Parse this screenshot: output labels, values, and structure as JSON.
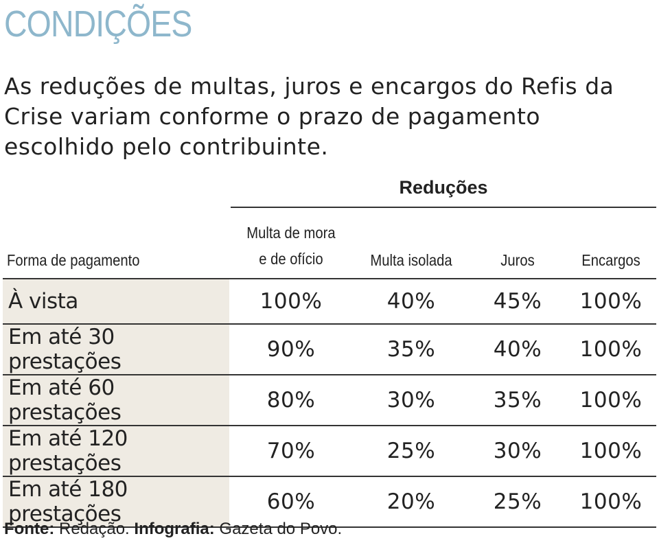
{
  "title": "CONDIÇÕES",
  "subtitle": "As reduções de multas, juros e encargos do Refis da Crise variam conforme o prazo de pagamento escolhido pelo contribuinte.",
  "table": {
    "group_header": "Reduções",
    "columns": {
      "payment": "Forma de pagamento",
      "multa_mora_line1": "Multa de mora",
      "multa_mora_line2": "e de ofício",
      "multa_isolada": "Multa isolada",
      "juros": "Juros",
      "encargos": "Encargos"
    },
    "rows": [
      {
        "payment": "À vista",
        "multa_mora": "100%",
        "multa_isolada": "40%",
        "juros": "45%",
        "encargos": "100%"
      },
      {
        "payment": "Em até 30 prestações",
        "multa_mora": "90%",
        "multa_isolada": "35%",
        "juros": "40%",
        "encargos": "100%"
      },
      {
        "payment": "Em até 60 prestações",
        "multa_mora": "80%",
        "multa_isolada": "30%",
        "juros": "35%",
        "encargos": "100%"
      },
      {
        "payment": "Em até 120 prestações",
        "multa_mora": "70%",
        "multa_isolada": "25%",
        "juros": "30%",
        "encargos": "100%"
      },
      {
        "payment": "Em até 180 prestações",
        "multa_mora": "60%",
        "multa_isolada": "20%",
        "juros": "25%",
        "encargos": "100%"
      }
    ]
  },
  "footer": {
    "fonte_label": "Fonte:",
    "fonte_value": "Redação.",
    "infografia_label": "Infografia:",
    "infografia_value": "Gazeta do Povo."
  },
  "colors": {
    "title": "#8eb7cc",
    "label_cell_bg": "#efebe3",
    "text": "#222222",
    "rule": "#333333"
  },
  "chart_data": {
    "type": "table",
    "title": "CONDIÇÕES",
    "subtitle": "As reduções de multas, juros e encargos do Refis da Crise variam conforme o prazo de pagamento escolhido pelo contribuinte.",
    "group_header": "Reduções",
    "columns": [
      "Forma de pagamento",
      "Multa de mora e de ofício",
      "Multa isolada",
      "Juros",
      "Encargos"
    ],
    "rows": [
      [
        "À vista",
        100,
        40,
        45,
        100
      ],
      [
        "Em até 30 prestações",
        90,
        35,
        40,
        100
      ],
      [
        "Em até 60 prestações",
        80,
        30,
        35,
        100
      ],
      [
        "Em até 120 prestações",
        70,
        25,
        30,
        100
      ],
      [
        "Em até 180 prestações",
        60,
        20,
        25,
        100
      ]
    ],
    "unit": "%",
    "source": "Fonte: Redação. Infografia: Gazeta do Povo."
  }
}
